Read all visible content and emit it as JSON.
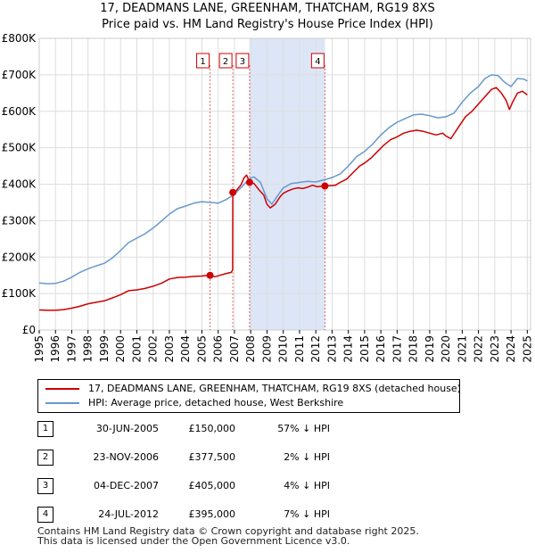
{
  "title_line1": "17, DEADMANS LANE, GREENHAM, THATCHAM, RG19 8XS",
  "title_line2": "Price paid vs. HM Land Registry's House Price Index (HPI)",
  "colors": {
    "property": "#cc0000",
    "hpi": "#6699cc",
    "shade": "#dde6f7"
  },
  "chart_data": {
    "type": "line",
    "title": "17, DEADMANS LANE, GREENHAM, THATCHAM, RG19 8XS",
    "subtitle": "Price paid vs. HM Land Registry's House Price Index (HPI)",
    "xlabel": "",
    "ylabel": "",
    "xlim": [
      1995,
      2025.2
    ],
    "ylim": [
      0,
      800000
    ],
    "y_ticks": [
      {
        "value": 0,
        "label": "£0"
      },
      {
        "value": 100000,
        "label": "£100K"
      },
      {
        "value": 200000,
        "label": "£200K"
      },
      {
        "value": 300000,
        "label": "£300K"
      },
      {
        "value": 400000,
        "label": "£400K"
      },
      {
        "value": 500000,
        "label": "£500K"
      },
      {
        "value": 600000,
        "label": "£600K"
      },
      {
        "value": 700000,
        "label": "£700K"
      },
      {
        "value": 800000,
        "label": "£800K"
      }
    ],
    "x_ticks": [
      "1995",
      "1996",
      "1997",
      "1998",
      "1999",
      "2000",
      "2001",
      "2002",
      "2003",
      "2004",
      "2005",
      "2006",
      "2007",
      "2008",
      "2009",
      "2010",
      "2011",
      "2012",
      "2013",
      "2014",
      "2015",
      "2016",
      "2017",
      "2018",
      "2019",
      "2020",
      "2021",
      "2022",
      "2023",
      "2024",
      "2025"
    ],
    "grid": true,
    "shaded_range": [
      2007.92,
      2012.56
    ],
    "series": [
      {
        "name": "17, DEADMANS LANE, GREENHAM, THATCHAM, RG19 8XS (detached house)",
        "color": "#cc0000",
        "points": [
          [
            1995.0,
            55000
          ],
          [
            1995.5,
            54000
          ],
          [
            1996.0,
            54000
          ],
          [
            1996.5,
            56000
          ],
          [
            1997.0,
            60000
          ],
          [
            1997.5,
            65000
          ],
          [
            1998.0,
            72000
          ],
          [
            1998.5,
            76000
          ],
          [
            1999.0,
            80000
          ],
          [
            1999.5,
            88000
          ],
          [
            2000.0,
            97000
          ],
          [
            2000.5,
            108000
          ],
          [
            2001.0,
            110000
          ],
          [
            2001.5,
            114000
          ],
          [
            2002.0,
            120000
          ],
          [
            2002.5,
            128000
          ],
          [
            2003.0,
            140000
          ],
          [
            2003.5,
            144000
          ],
          [
            2004.0,
            145000
          ],
          [
            2004.5,
            147000
          ],
          [
            2005.0,
            148000
          ],
          [
            2005.3,
            150000
          ],
          [
            2005.5,
            150000
          ],
          [
            2005.8,
            146000
          ],
          [
            2006.1,
            150000
          ],
          [
            2006.5,
            155000
          ],
          [
            2006.8,
            158000
          ],
          [
            2006.89,
            165000
          ],
          [
            2006.9,
            377500
          ],
          [
            2007.1,
            382000
          ],
          [
            2007.4,
            398000
          ],
          [
            2007.6,
            418000
          ],
          [
            2007.75,
            425000
          ],
          [
            2007.93,
            405000
          ],
          [
            2008.2,
            402000
          ],
          [
            2008.5,
            385000
          ],
          [
            2008.8,
            370000
          ],
          [
            2009.0,
            345000
          ],
          [
            2009.2,
            335000
          ],
          [
            2009.5,
            345000
          ],
          [
            2009.8,
            365000
          ],
          [
            2010.0,
            375000
          ],
          [
            2010.3,
            382000
          ],
          [
            2010.6,
            387000
          ],
          [
            2010.9,
            390000
          ],
          [
            2011.2,
            388000
          ],
          [
            2011.5,
            392000
          ],
          [
            2011.8,
            397000
          ],
          [
            2012.1,
            393000
          ],
          [
            2012.56,
            395000
          ],
          [
            2012.9,
            396000
          ],
          [
            2013.2,
            397000
          ],
          [
            2013.5,
            405000
          ],
          [
            2013.9,
            414000
          ],
          [
            2014.3,
            432000
          ],
          [
            2014.7,
            450000
          ],
          [
            2015.0,
            458000
          ],
          [
            2015.4,
            472000
          ],
          [
            2015.8,
            490000
          ],
          [
            2016.2,
            508000
          ],
          [
            2016.6,
            522000
          ],
          [
            2017.0,
            530000
          ],
          [
            2017.4,
            540000
          ],
          [
            2017.8,
            545000
          ],
          [
            2018.2,
            548000
          ],
          [
            2018.6,
            545000
          ],
          [
            2019.0,
            540000
          ],
          [
            2019.4,
            535000
          ],
          [
            2019.8,
            540000
          ],
          [
            2020.0,
            532000
          ],
          [
            2020.3,
            525000
          ],
          [
            2020.6,
            545000
          ],
          [
            2020.9,
            565000
          ],
          [
            2021.2,
            585000
          ],
          [
            2021.6,
            600000
          ],
          [
            2022.0,
            620000
          ],
          [
            2022.4,
            640000
          ],
          [
            2022.8,
            660000
          ],
          [
            2023.1,
            665000
          ],
          [
            2023.4,
            650000
          ],
          [
            2023.7,
            630000
          ],
          [
            2023.9,
            605000
          ],
          [
            2024.1,
            625000
          ],
          [
            2024.4,
            650000
          ],
          [
            2024.7,
            655000
          ],
          [
            2025.0,
            645000
          ]
        ]
      },
      {
        "name": "HPI: Average price, detached house, West Berkshire",
        "color": "#6699cc",
        "points": [
          [
            1995.0,
            129000
          ],
          [
            1995.5,
            127000
          ],
          [
            1996.0,
            128000
          ],
          [
            1996.5,
            134000
          ],
          [
            1997.0,
            145000
          ],
          [
            1997.5,
            158000
          ],
          [
            1998.0,
            168000
          ],
          [
            1998.5,
            176000
          ],
          [
            1999.0,
            183000
          ],
          [
            1999.5,
            198000
          ],
          [
            2000.0,
            218000
          ],
          [
            2000.5,
            240000
          ],
          [
            2001.0,
            252000
          ],
          [
            2001.5,
            264000
          ],
          [
            2002.0,
            280000
          ],
          [
            2002.5,
            298000
          ],
          [
            2003.0,
            318000
          ],
          [
            2003.5,
            333000
          ],
          [
            2004.0,
            340000
          ],
          [
            2004.5,
            348000
          ],
          [
            2005.0,
            352000
          ],
          [
            2005.5,
            350000
          ],
          [
            2006.0,
            348000
          ],
          [
            2006.5,
            358000
          ],
          [
            2007.0,
            372000
          ],
          [
            2007.5,
            395000
          ],
          [
            2007.9,
            415000
          ],
          [
            2008.2,
            420000
          ],
          [
            2008.6,
            405000
          ],
          [
            2009.0,
            360000
          ],
          [
            2009.3,
            345000
          ],
          [
            2009.6,
            365000
          ],
          [
            2010.0,
            390000
          ],
          [
            2010.5,
            402000
          ],
          [
            2011.0,
            405000
          ],
          [
            2011.5,
            408000
          ],
          [
            2012.0,
            406000
          ],
          [
            2012.5,
            412000
          ],
          [
            2013.0,
            418000
          ],
          [
            2013.5,
            428000
          ],
          [
            2014.0,
            450000
          ],
          [
            2014.5,
            475000
          ],
          [
            2015.0,
            490000
          ],
          [
            2015.5,
            510000
          ],
          [
            2016.0,
            535000
          ],
          [
            2016.5,
            555000
          ],
          [
            2017.0,
            570000
          ],
          [
            2017.5,
            580000
          ],
          [
            2018.0,
            590000
          ],
          [
            2018.5,
            592000
          ],
          [
            2019.0,
            588000
          ],
          [
            2019.5,
            582000
          ],
          [
            2020.0,
            585000
          ],
          [
            2020.5,
            595000
          ],
          [
            2021.0,
            625000
          ],
          [
            2021.5,
            650000
          ],
          [
            2022.0,
            668000
          ],
          [
            2022.4,
            690000
          ],
          [
            2022.8,
            700000
          ],
          [
            2023.2,
            698000
          ],
          [
            2023.6,
            680000
          ],
          [
            2024.0,
            668000
          ],
          [
            2024.4,
            690000
          ],
          [
            2024.8,
            688000
          ],
          [
            2025.0,
            683000
          ]
        ]
      }
    ],
    "sales": [
      {
        "label": "1",
        "date": 2005.5,
        "price": 150000
      },
      {
        "label": "2",
        "date": 2006.9,
        "price": 377500
      },
      {
        "label": "3",
        "date": 2007.93,
        "price": 405000
      },
      {
        "label": "4",
        "date": 2012.56,
        "price": 395000
      }
    ]
  },
  "legend": {
    "property": "17, DEADMANS LANE, GREENHAM, THATCHAM, RG19 8XS (detached house)",
    "hpi": "HPI: Average price, detached house, West Berkshire"
  },
  "transactions": [
    {
      "num": "1",
      "date": "30-JUN-2005",
      "price": "£150,000",
      "hpi": "57% ↓ HPI"
    },
    {
      "num": "2",
      "date": "23-NOV-2006",
      "price": "£377,500",
      "hpi": "2% ↓ HPI"
    },
    {
      "num": "3",
      "date": "04-DEC-2007",
      "price": "£405,000",
      "hpi": "4% ↓ HPI"
    },
    {
      "num": "4",
      "date": "24-JUL-2012",
      "price": "£395,000",
      "hpi": "7% ↓ HPI"
    }
  ],
  "footer": {
    "line1": "Contains HM Land Registry data © Crown copyright and database right 2025.",
    "line2": "This data is licensed under the Open Government Licence v3.0."
  }
}
